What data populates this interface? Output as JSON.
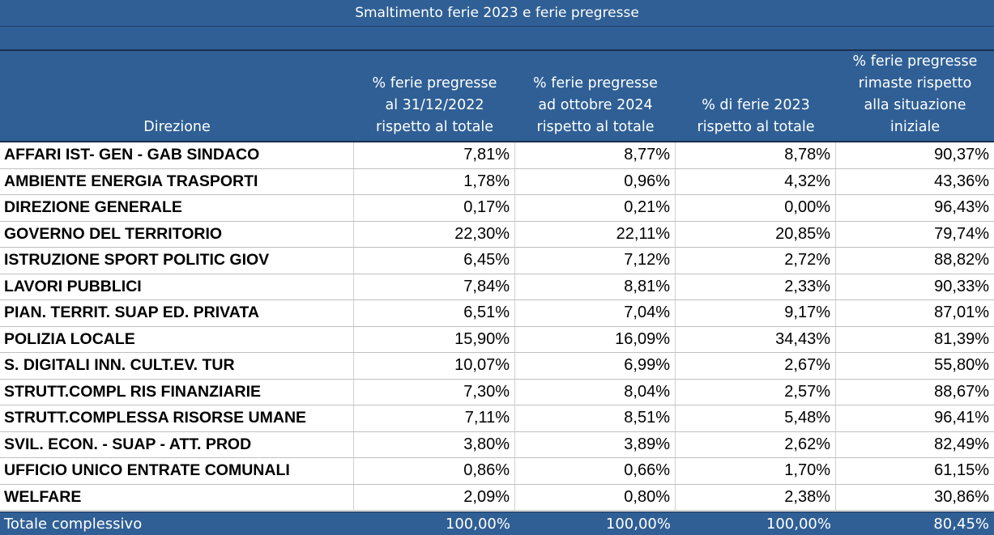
{
  "title": "Smaltimento ferie 2023 e ferie pregresse",
  "headers": {
    "direzione": "Direzione",
    "col1": "% ferie pregresse\nal 31/12/2022\nrispetto al totale",
    "col2": "% ferie pregresse\nad ottobre 2024\nrispetto al totale",
    "col3": "% di ferie 2023\nrispetto al totale",
    "col4": "% ferie pregresse\nrimaste rispetto\nalla situazione\niniziale"
  },
  "rows": [
    {
      "name": "AFFARI IST- GEN - GAB SINDACO",
      "v1": "7,81%",
      "v2": "8,77%",
      "v3": "8,78%",
      "v4": "90,37%"
    },
    {
      "name": "AMBIENTE ENERGIA TRASPORTI",
      "v1": "1,78%",
      "v2": "0,96%",
      "v3": "4,32%",
      "v4": "43,36%"
    },
    {
      "name": "DIREZIONE GENERALE",
      "v1": "0,17%",
      "v2": "0,21%",
      "v3": "0,00%",
      "v4": "96,43%"
    },
    {
      "name": "GOVERNO DEL TERRITORIO",
      "v1": "22,30%",
      "v2": "22,11%",
      "v3": "20,85%",
      "v4": "79,74%"
    },
    {
      "name": "ISTRUZIONE  SPORT POLITIC GIOV",
      "v1": "6,45%",
      "v2": "7,12%",
      "v3": "2,72%",
      "v4": "88,82%"
    },
    {
      "name": "LAVORI PUBBLICI",
      "v1": "7,84%",
      "v2": "8,81%",
      "v3": "2,33%",
      "v4": "90,33%"
    },
    {
      "name": "PIAN. TERRIT. SUAP ED. PRIVATA",
      "v1": "6,51%",
      "v2": "7,04%",
      "v3": "9,17%",
      "v4": "87,01%"
    },
    {
      "name": "POLIZIA LOCALE",
      "v1": "15,90%",
      "v2": "16,09%",
      "v3": "34,43%",
      "v4": "81,39%"
    },
    {
      "name": "S. DIGITALI  INN. CULT.EV. TUR",
      "v1": "10,07%",
      "v2": "6,99%",
      "v3": "2,67%",
      "v4": "55,80%"
    },
    {
      "name": "STRUTT.COMPL RIS FINANZIARIE",
      "v1": "7,30%",
      "v2": "8,04%",
      "v3": "2,57%",
      "v4": "88,67%"
    },
    {
      "name": "STRUTT.COMPLESSA RISORSE UMANE",
      "v1": "7,11%",
      "v2": "8,51%",
      "v3": "5,48%",
      "v4": "96,41%"
    },
    {
      "name": "SVIL. ECON. - SUAP - ATT. PROD",
      "v1": "3,80%",
      "v2": "3,89%",
      "v3": "2,62%",
      "v4": "82,49%"
    },
    {
      "name": "UFFICIO UNICO ENTRATE COMUNALI",
      "v1": "0,86%",
      "v2": "0,66%",
      "v3": "1,70%",
      "v4": "61,15%"
    },
    {
      "name": "WELFARE",
      "v1": "2,09%",
      "v2": "0,80%",
      "v3": "2,38%",
      "v4": "30,86%"
    }
  ],
  "total": {
    "name": "Totale complessivo",
    "v1": "100,00%",
    "v2": "100,00%",
    "v3": "100,00%",
    "v4": "80,45%"
  },
  "colors": {
    "header_bg": "#2f5f95",
    "header_text": "#ffffff",
    "grid": "#bfbfbf"
  }
}
